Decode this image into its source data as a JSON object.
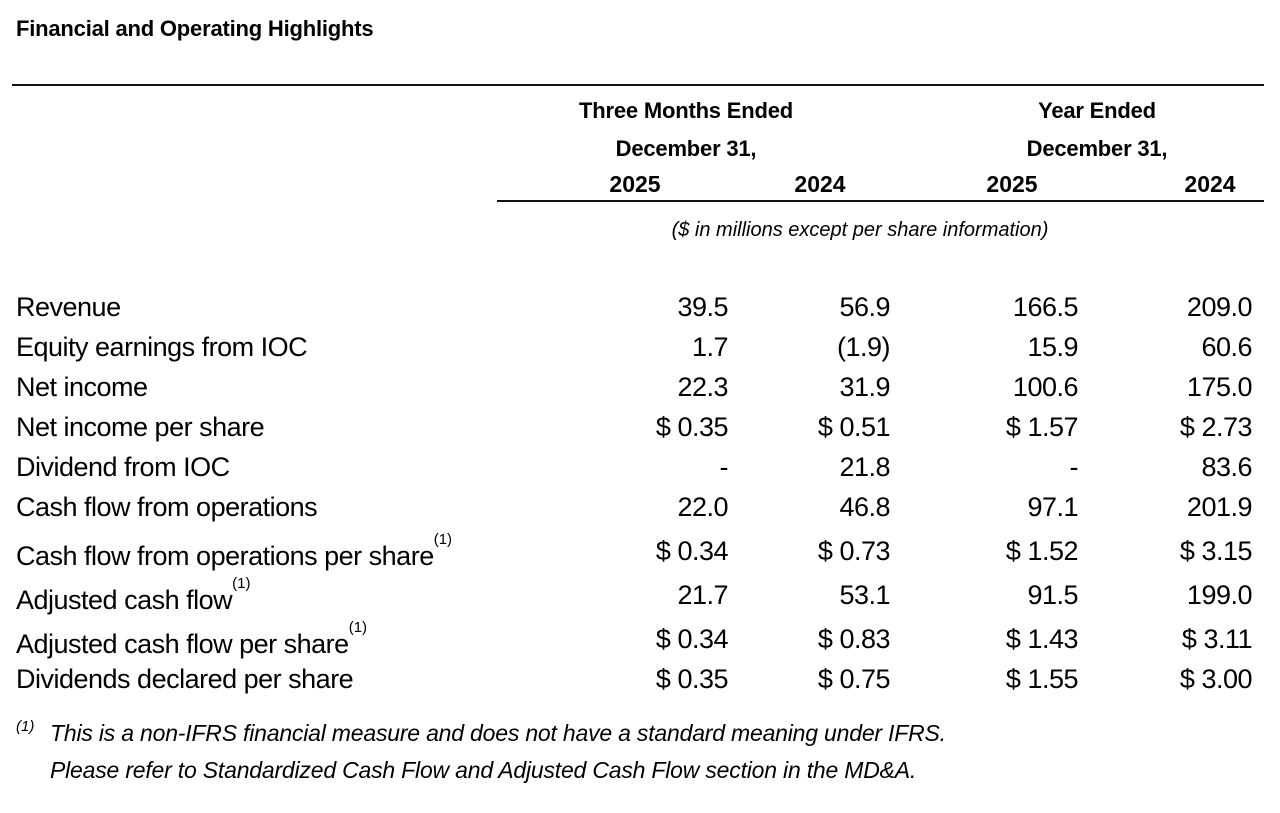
{
  "title": "Financial and Operating Highlights",
  "table": {
    "group_headers": [
      {
        "line1": "Three Months Ended",
        "line2": "December 31,"
      },
      {
        "line1": "Year Ended",
        "line2": "December 31,"
      }
    ],
    "year_headers": [
      "2025",
      "2024",
      "2025",
      "2024"
    ],
    "units_note": "($ in millions except per share information)",
    "rows": [
      {
        "label": "Revenue",
        "sup": "",
        "values": [
          "39.5",
          "56.9",
          "166.5",
          "209.0"
        ]
      },
      {
        "label": "Equity earnings from IOC",
        "sup": "",
        "values": [
          "1.7",
          "(1.9)",
          "15.9",
          "60.6"
        ]
      },
      {
        "label": "Net income",
        "sup": "",
        "values": [
          "22.3",
          "31.9",
          "100.6",
          "175.0"
        ]
      },
      {
        "label": "Net income per share",
        "sup": "",
        "values": [
          "$ 0.35",
          "$ 0.51",
          "$ 1.57",
          "$ 2.73"
        ]
      },
      {
        "label": "Dividend from IOC",
        "sup": "",
        "values": [
          "-",
          "21.8",
          "-",
          "83.6"
        ]
      },
      {
        "label": "Cash flow from operations",
        "sup": "",
        "values": [
          "22.0",
          "46.8",
          "97.1",
          "201.9"
        ]
      },
      {
        "label": "Cash flow from operations per share",
        "sup": "(1)",
        "values": [
          "$ 0.34",
          "$ 0.73",
          "$ 1.52",
          "$ 3.15"
        ]
      },
      {
        "label": "Adjusted cash flow",
        "sup": "(1)",
        "values": [
          "21.7",
          "53.1",
          "91.5",
          "199.0"
        ]
      },
      {
        "label": "Adjusted cash flow per share",
        "sup": "(1)",
        "values": [
          "$ 0.34",
          "$ 0.83",
          "$ 1.43",
          "$ 3.11"
        ]
      },
      {
        "label": "Dividends declared per share",
        "sup": "",
        "values": [
          "$ 0.35",
          "$ 0.75",
          "$ 1.55",
          "$ 3.00"
        ]
      }
    ]
  },
  "footnote": {
    "marker": "(1)",
    "line1": "This is a non-IFRS financial measure and does not have a standard meaning under IFRS.",
    "line2": "Please refer to Standardized Cash Flow and Adjusted Cash Flow section in the MD&A."
  }
}
